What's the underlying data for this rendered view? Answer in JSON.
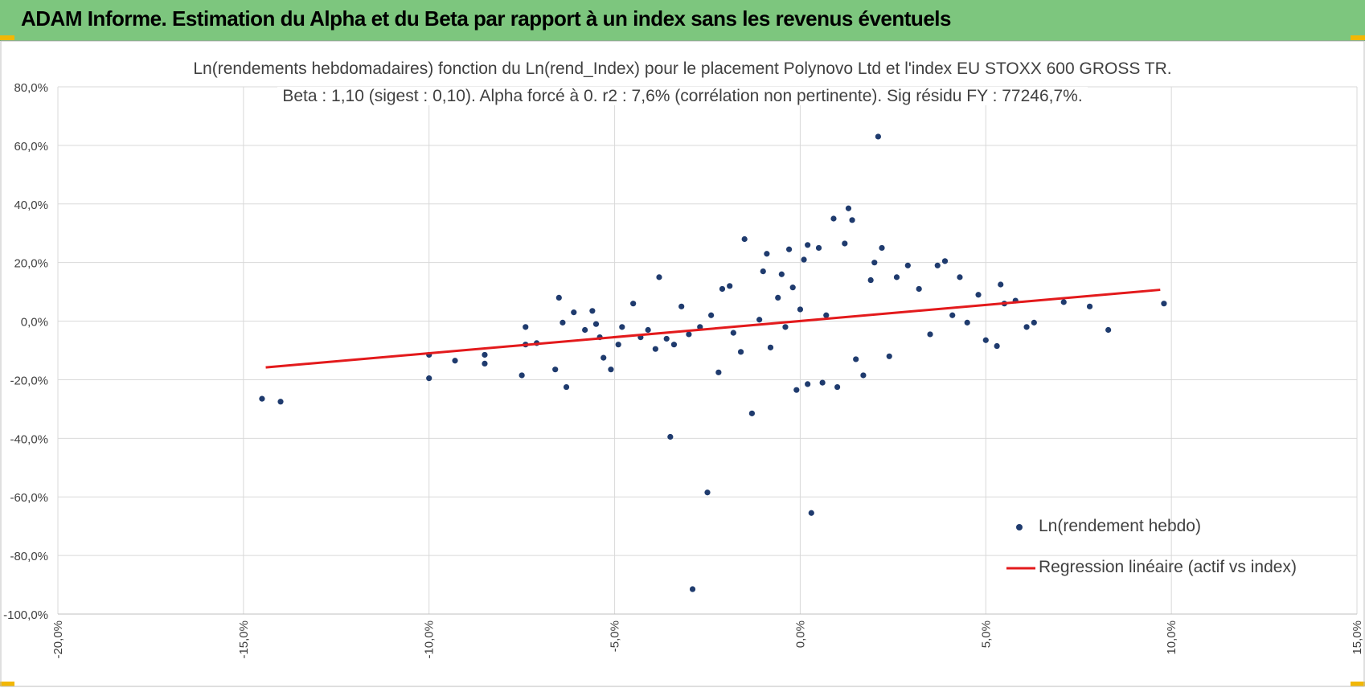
{
  "header": {
    "title": "ADAM Informe. Estimation du Alpha et du Beta par rapport à un index sans les revenus éventuels"
  },
  "colors": {
    "banner": "#7dc67e",
    "accent_corner": "#f2b705",
    "points": "#1f3b6e",
    "regression": "#e31a1c",
    "grid": "#d9d9d9",
    "text": "#404040"
  },
  "chart_data": {
    "type": "scatter",
    "title": "Ln(rendements hebdomadaires) fonction du Ln(rend_Index) pour le placement Polynovo Ltd et l'index EU STOXX 600 GROSS TR.",
    "subtitle": "Beta : 1,10 (sigest : 0,10). Alpha forcé à 0. r2 : 7,6% (corrélation non pertinente). Sig résidu FY : 77246,7%.",
    "xlabel": "",
    "ylabel": "",
    "xlim": [
      -0.2,
      0.15
    ],
    "ylim": [
      -1.0,
      0.8
    ],
    "x_ticks": [
      "-20,0%",
      "-15,0%",
      "-10,0%",
      "-5,0%",
      "0,0%",
      "5,0%",
      "10,0%",
      "15,0%"
    ],
    "y_ticks": [
      "80,0%",
      "60,0%",
      "40,0%",
      "20,0%",
      "0,0%",
      "-20,0%",
      "-40,0%",
      "-60,0%",
      "-80,0%",
      "-100,0%"
    ],
    "grid": true,
    "legend_position": "bottom-right",
    "series": [
      {
        "name": "Ln(rendement hebdo)",
        "kind": "scatter",
        "points": [
          [
            -0.145,
            -0.265
          ],
          [
            -0.14,
            -0.275
          ],
          [
            -0.1,
            -0.195
          ],
          [
            -0.1,
            -0.115
          ],
          [
            -0.093,
            -0.135
          ],
          [
            -0.085,
            -0.145
          ],
          [
            -0.085,
            -0.115
          ],
          [
            -0.075,
            -0.185
          ],
          [
            -0.074,
            -0.08
          ],
          [
            -0.074,
            -0.02
          ],
          [
            -0.071,
            -0.075
          ],
          [
            -0.066,
            -0.165
          ],
          [
            -0.065,
            0.08
          ],
          [
            -0.063,
            -0.225
          ],
          [
            -0.064,
            -0.005
          ],
          [
            -0.061,
            0.03
          ],
          [
            -0.058,
            -0.03
          ],
          [
            -0.056,
            0.035
          ],
          [
            -0.055,
            -0.01
          ],
          [
            -0.054,
            -0.055
          ],
          [
            -0.053,
            -0.125
          ],
          [
            -0.051,
            -0.165
          ],
          [
            -0.049,
            -0.08
          ],
          [
            -0.048,
            -0.02
          ],
          [
            -0.045,
            0.06
          ],
          [
            -0.043,
            -0.055
          ],
          [
            -0.041,
            -0.03
          ],
          [
            -0.039,
            -0.095
          ],
          [
            -0.038,
            0.15
          ],
          [
            -0.036,
            -0.06
          ],
          [
            -0.035,
            -0.395
          ],
          [
            -0.034,
            -0.08
          ],
          [
            -0.032,
            0.05
          ],
          [
            -0.03,
            -0.045
          ],
          [
            -0.029,
            -0.915
          ],
          [
            -0.027,
            -0.02
          ],
          [
            -0.025,
            -0.585
          ],
          [
            -0.024,
            0.02
          ],
          [
            -0.022,
            -0.175
          ],
          [
            -0.021,
            0.11
          ],
          [
            -0.019,
            0.12
          ],
          [
            -0.018,
            -0.04
          ],
          [
            -0.016,
            -0.105
          ],
          [
            -0.015,
            0.28
          ],
          [
            -0.013,
            -0.315
          ],
          [
            -0.011,
            0.005
          ],
          [
            -0.01,
            0.17
          ],
          [
            -0.009,
            0.23
          ],
          [
            -0.008,
            -0.09
          ],
          [
            -0.006,
            0.08
          ],
          [
            -0.005,
            0.16
          ],
          [
            -0.004,
            -0.02
          ],
          [
            -0.003,
            0.245
          ],
          [
            -0.002,
            0.115
          ],
          [
            -0.001,
            -0.235
          ],
          [
            0.0,
            0.04
          ],
          [
            0.001,
            0.21
          ],
          [
            0.002,
            0.26
          ],
          [
            0.002,
            -0.215
          ],
          [
            0.003,
            -0.655
          ],
          [
            0.005,
            0.25
          ],
          [
            0.006,
            -0.21
          ],
          [
            0.007,
            0.02
          ],
          [
            0.009,
            0.35
          ],
          [
            0.01,
            -0.225
          ],
          [
            0.012,
            0.265
          ],
          [
            0.013,
            0.385
          ],
          [
            0.014,
            0.345
          ],
          [
            0.015,
            -0.13
          ],
          [
            0.017,
            -0.185
          ],
          [
            0.019,
            0.14
          ],
          [
            0.02,
            0.2
          ],
          [
            0.021,
            0.63
          ],
          [
            0.022,
            0.25
          ],
          [
            0.024,
            -0.12
          ],
          [
            0.026,
            0.15
          ],
          [
            0.029,
            0.19
          ],
          [
            0.032,
            0.11
          ],
          [
            0.035,
            -0.045
          ],
          [
            0.037,
            0.19
          ],
          [
            0.039,
            0.205
          ],
          [
            0.041,
            0.02
          ],
          [
            0.043,
            0.15
          ],
          [
            0.045,
            -0.005
          ],
          [
            0.048,
            0.09
          ],
          [
            0.05,
            -0.065
          ],
          [
            0.053,
            -0.085
          ],
          [
            0.054,
            0.125
          ],
          [
            0.055,
            0.06
          ],
          [
            0.058,
            0.07
          ],
          [
            0.061,
            -0.02
          ],
          [
            0.063,
            -0.005
          ],
          [
            0.071,
            0.065
          ],
          [
            0.078,
            0.05
          ],
          [
            0.083,
            -0.03
          ],
          [
            0.098,
            0.06
          ]
        ]
      },
      {
        "name": "Regression linéaire (actif vs index)",
        "kind": "line",
        "points": [
          [
            -0.144,
            -0.158
          ],
          [
            0.097,
            0.107
          ]
        ]
      }
    ]
  }
}
